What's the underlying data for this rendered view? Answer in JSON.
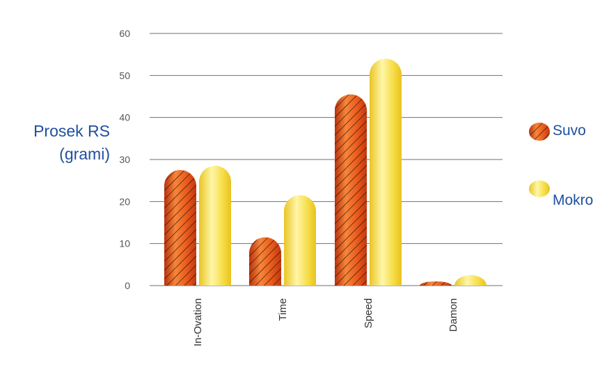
{
  "chart_data": {
    "type": "bar",
    "categories": [
      "In-Ovation",
      "Time",
      "Speed",
      "Damon"
    ],
    "series": [
      {
        "name": "Suvo",
        "values": [
          27.5,
          11.5,
          45.5,
          1.0
        ],
        "color": "#e0501a",
        "pattern": "hatched"
      },
      {
        "name": "Mokro",
        "values": [
          28.5,
          21.5,
          54.0,
          2.5
        ],
        "color": "#f2d23a",
        "pattern": "solid"
      }
    ],
    "ylim": [
      0,
      60
    ],
    "yticks": [
      0,
      10,
      20,
      30,
      40,
      50,
      60
    ],
    "ylabel": [
      "Prosek RS",
      "(grami)"
    ],
    "xlabel": "",
    "grid": true,
    "legend_position": "right"
  }
}
